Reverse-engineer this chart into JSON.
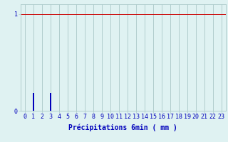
{
  "title": "",
  "xlabel": "Précipitations 6min ( mm )",
  "ylabel": "",
  "background_color": "#dff2f2",
  "bar_color": "#0000bb",
  "grid_color": "#aac8c8",
  "hline_color": "#cc0000",
  "xlim": [
    -0.5,
    23.5
  ],
  "ylim": [
    0,
    1.1
  ],
  "yticks": [
    0,
    1
  ],
  "xticks": [
    0,
    1,
    2,
    3,
    4,
    5,
    6,
    7,
    8,
    9,
    10,
    11,
    12,
    13,
    14,
    15,
    16,
    17,
    18,
    19,
    20,
    21,
    22,
    23
  ],
  "hours": [
    0,
    1,
    2,
    3,
    4,
    5,
    6,
    7,
    8,
    9,
    10,
    11,
    12,
    13,
    14,
    15,
    16,
    17,
    18,
    19,
    20,
    21,
    22,
    23
  ],
  "values": [
    0,
    0.18,
    0,
    0.18,
    0,
    0,
    0,
    0,
    0,
    0,
    0,
    0,
    0,
    0,
    0,
    0,
    0,
    0,
    0,
    0,
    0,
    0,
    0,
    0
  ],
  "tick_fontsize": 6,
  "label_fontsize": 7,
  "hline_y": 1.0,
  "bar_width": 0.15
}
